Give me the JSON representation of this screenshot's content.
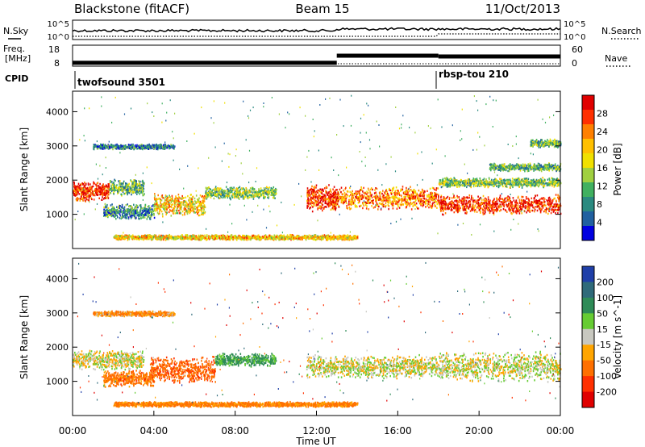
{
  "header": {
    "radar": "Blackstone (fitACF)",
    "beam": "Beam 15",
    "date": "11/Oct/2013"
  },
  "noise_panel": {
    "left_label": "N.Sky",
    "right_label": "N.Search",
    "left_ticks": [
      "10^5",
      "10^0"
    ],
    "right_ticks": [
      "10^5",
      "10^0"
    ]
  },
  "freq_panel": {
    "left_label_line1": "Freq.",
    "left_label_line2": "[MHz]",
    "right_label": "Nave",
    "left_ticks": [
      "18",
      "8"
    ],
    "right_ticks": [
      "60",
      "0"
    ],
    "freq_steps": [
      {
        "t_start": 0,
        "t_end": 13.0,
        "freq_mhz": 10.3
      },
      {
        "t_start": 13.0,
        "t_end": 18.0,
        "freq_mhz": 15.8
      },
      {
        "t_start": 18.0,
        "t_end": 24.0,
        "freq_mhz": 15.2
      }
    ]
  },
  "cpid_panel": {
    "label": "CPID",
    "segments": [
      {
        "name": "twofsound 3501",
        "t_start": 0,
        "t_end": 18.0
      },
      {
        "name": "rbsp-tou 210",
        "t_start": 18.0,
        "t_end": 24.0
      }
    ]
  },
  "chart_data": [
    {
      "type": "heatmap",
      "quantity": "Power",
      "ylabel": "Slant Range [km]",
      "colorbar_label": "Power [dB]",
      "xlim": [
        0,
        24
      ],
      "ylim": [
        0,
        4600
      ],
      "y_ticks": [
        1000,
        2000,
        3000,
        4000
      ],
      "colorbar_ticks": [
        "28",
        "24",
        "20",
        "16",
        "12",
        "8",
        "4"
      ],
      "colorbar_colors": [
        "#e00000",
        "#ff3000",
        "#ff8000",
        "#ffc000",
        "#f0e000",
        "#a0d040",
        "#40b060",
        "#2a8a80",
        "#2060a0",
        "#0000e0"
      ],
      "echo_bands": [
        {
          "t_start": 0.0,
          "t_end": 1.8,
          "range_center_km": 1700,
          "range_width_km": 300,
          "power_db": 26
        },
        {
          "t_start": 1.8,
          "t_end": 3.5,
          "range_center_km": 1800,
          "range_width_km": 250,
          "power_db": 10
        },
        {
          "t_start": 1.5,
          "t_end": 4.0,
          "range_center_km": 1100,
          "range_width_km": 250,
          "power_db": 8
        },
        {
          "t_start": 4.0,
          "t_end": 6.5,
          "range_center_km": 1300,
          "range_width_km": 350,
          "power_db": 18
        },
        {
          "t_start": 6.5,
          "t_end": 10.0,
          "range_center_km": 1650,
          "range_width_km": 200,
          "power_db": 12
        },
        {
          "t_start": 11.5,
          "t_end": 13.0,
          "range_center_km": 1500,
          "range_width_km": 400,
          "power_db": 26
        },
        {
          "t_start": 13.0,
          "t_end": 18.0,
          "range_center_km": 1500,
          "range_width_km": 350,
          "power_db": 22
        },
        {
          "t_start": 18.0,
          "t_end": 24.0,
          "range_center_km": 1300,
          "range_width_km": 300,
          "power_db": 26
        },
        {
          "t_start": 18.0,
          "t_end": 24.0,
          "range_center_km": 1950,
          "range_width_km": 150,
          "power_db": 12
        },
        {
          "t_start": 1.0,
          "t_end": 5.0,
          "range_center_km": 3000,
          "range_width_km": 80,
          "power_db": 6
        },
        {
          "t_start": 20.5,
          "t_end": 24.0,
          "range_center_km": 2400,
          "range_width_km": 120,
          "power_db": 10
        },
        {
          "t_start": 22.5,
          "t_end": 24.0,
          "range_center_km": 3100,
          "range_width_km": 120,
          "power_db": 10
        },
        {
          "t_start": 2.0,
          "t_end": 14.0,
          "range_center_km": 350,
          "range_width_km": 80,
          "power_db": 18
        }
      ]
    },
    {
      "type": "heatmap",
      "quantity": "Velocity",
      "ylabel": "Slant Range [km]",
      "colorbar_label": "Velocity [m s^-1]",
      "xlabel": "Time UT",
      "xlim": [
        0,
        24
      ],
      "ylim": [
        0,
        4600
      ],
      "y_ticks": [
        1000,
        2000,
        3000,
        4000
      ],
      "x_ticks": [
        "00:00",
        "04:00",
        "08:00",
        "12:00",
        "16:00",
        "20:00",
        "00:00"
      ],
      "colorbar_ticks": [
        "200",
        "100",
        "50",
        "15",
        "-15",
        "-50",
        "-100",
        "-200"
      ],
      "colorbar_colors": [
        "#1f3fa8",
        "#2f6a7a",
        "#2e8b57",
        "#66cc33",
        "#c8c8c0",
        "#ffa500",
        "#ff7000",
        "#ff3000",
        "#e00000"
      ],
      "echo_bands": [
        {
          "t_start": 0.0,
          "t_end": 3.5,
          "range_center_km": 1650,
          "range_width_km": 300,
          "velocity_ms": 0
        },
        {
          "t_start": 1.5,
          "t_end": 4.0,
          "range_center_km": 1100,
          "range_width_km": 250,
          "velocity_ms": -50
        },
        {
          "t_start": 3.8,
          "t_end": 7.0,
          "range_center_km": 1350,
          "range_width_km": 400,
          "velocity_ms": -60
        },
        {
          "t_start": 7.0,
          "t_end": 10.0,
          "range_center_km": 1650,
          "range_width_km": 200,
          "velocity_ms": 40
        },
        {
          "t_start": 11.5,
          "t_end": 18.0,
          "range_center_km": 1450,
          "range_width_km": 350,
          "velocity_ms": 0
        },
        {
          "t_start": 18.0,
          "t_end": 24.0,
          "range_center_km": 1450,
          "range_width_km": 450,
          "velocity_ms": 0
        },
        {
          "t_start": 1.0,
          "t_end": 5.0,
          "range_center_km": 3000,
          "range_width_km": 80,
          "velocity_ms": -30
        },
        {
          "t_start": 2.0,
          "t_end": 14.0,
          "range_center_km": 350,
          "range_width_km": 80,
          "velocity_ms": -40
        }
      ]
    }
  ]
}
